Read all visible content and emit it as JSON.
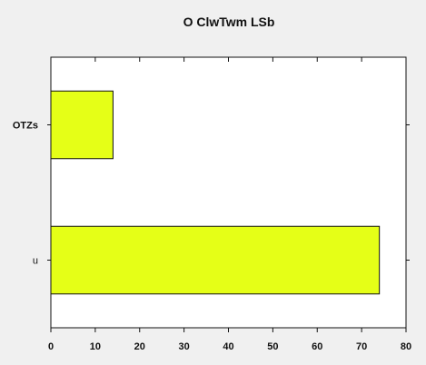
{
  "chart_data": {
    "type": "bar",
    "orientation": "horizontal",
    "title": "O  ClwTwm LSb",
    "xlabel": "",
    "ylabel": "",
    "categories": [
      "OTZs",
      "u"
    ],
    "values": [
      14,
      74
    ],
    "xlim": [
      0,
      80
    ],
    "xticks": [
      "0",
      "10",
      "20",
      "30",
      "40",
      "50",
      "60",
      "70",
      "80"
    ],
    "grid": false,
    "bar_color": "#e5ff17",
    "bar_edge_color": "#111111",
    "background": "#f0f0f0",
    "plot_background": "#ffffff"
  }
}
